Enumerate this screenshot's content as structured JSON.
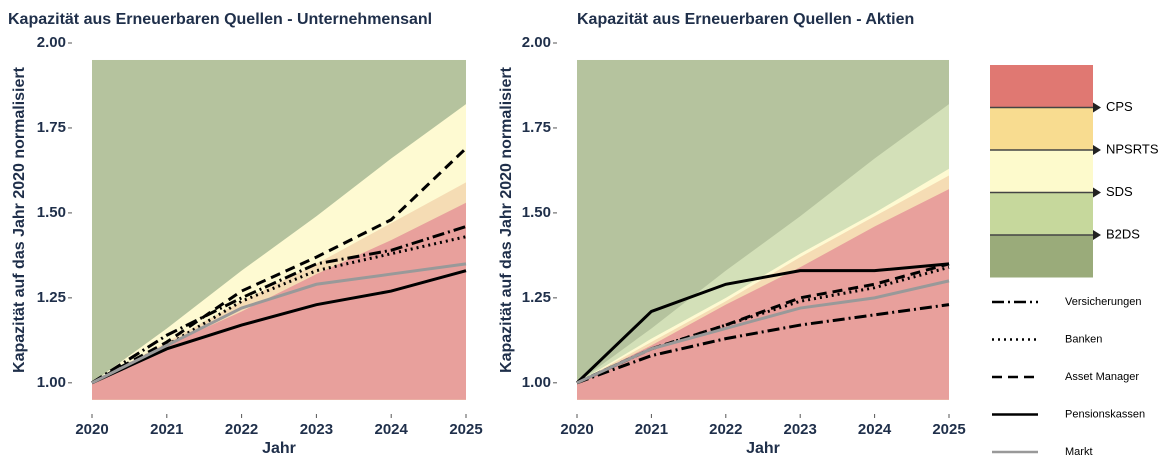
{
  "chart_data": [
    {
      "type": "line",
      "title": "Kapazität aus Erneuerbaren Quellen - Unternehmensanl",
      "x_label": "Jahr",
      "y_label": "Kapazität auf das Jahr 2020 normalisiert",
      "x": [
        2020,
        2021,
        2022,
        2023,
        2024,
        2025
      ],
      "xlim": [
        2020,
        2025
      ],
      "xticks": [
        2020,
        2021,
        2022,
        2023,
        2024,
        2025
      ],
      "ylim": [
        0.92,
        2.0
      ],
      "yticks": [
        {
          "value": 1,
          "label": "1.00"
        },
        {
          "value": 1.25,
          "label": "1.25"
        },
        {
          "value": 1.5,
          "label": "1.50"
        },
        {
          "value": 1.75,
          "label": "1.75"
        },
        {
          "value": 2,
          "label": "2.00"
        }
      ],
      "band_floor": 0.95,
      "band_ceiling": 1.95,
      "background_color": "#b5c39e",
      "bands": [
        {
          "name": "CPS",
          "color": "#e8a09c",
          "upper": [
            1.0,
            1.11,
            1.21,
            1.32,
            1.42,
            1.53
          ]
        },
        {
          "name": "NPSRTS",
          "color": "#f5dcb4",
          "upper": [
            1.0,
            1.12,
            1.24,
            1.35,
            1.47,
            1.59
          ]
        },
        {
          "name": "SDS",
          "color": "#fefad2",
          "upper": [
            1.0,
            1.16,
            1.33,
            1.49,
            1.66,
            1.82
          ]
        }
      ],
      "series": [
        {
          "name": "Versicherungen",
          "color": "#000000",
          "dash": "dashdot",
          "values": [
            1.0,
            1.14,
            1.25,
            1.35,
            1.39,
            1.46
          ]
        },
        {
          "name": "Banken",
          "color": "#000000",
          "dash": "dotted",
          "values": [
            1.0,
            1.11,
            1.24,
            1.33,
            1.38,
            1.43
          ]
        },
        {
          "name": "Asset Manager",
          "color": "#000000",
          "dash": "dashed",
          "values": [
            1.0,
            1.12,
            1.27,
            1.37,
            1.48,
            1.69
          ]
        },
        {
          "name": "Pensionskassen",
          "color": "#000000",
          "dash": "solid",
          "values": [
            1.0,
            1.1,
            1.17,
            1.23,
            1.27,
            1.33
          ]
        },
        {
          "name": "Markt",
          "color": "#999999",
          "dash": "solid",
          "values": [
            1.0,
            1.11,
            1.22,
            1.29,
            1.32,
            1.35
          ]
        }
      ]
    },
    {
      "type": "line",
      "title": "Kapazität aus Erneuerbaren Quellen - Aktien",
      "x_label": "Jahr",
      "y_label": "Kapazität auf das Jahr 2020 normalisiert",
      "x": [
        2020,
        2021,
        2022,
        2023,
        2024,
        2025
      ],
      "xlim": [
        2020,
        2025
      ],
      "xticks": [
        2020,
        2021,
        2022,
        2023,
        2024,
        2025
      ],
      "ylim": [
        0.92,
        2.0
      ],
      "yticks": [
        {
          "value": 1,
          "label": "1.00"
        },
        {
          "value": 1.25,
          "label": "1.25"
        },
        {
          "value": 1.5,
          "label": "1.50"
        },
        {
          "value": 1.75,
          "label": "1.75"
        },
        {
          "value": 2,
          "label": "2.00"
        }
      ],
      "band_floor": 0.95,
      "band_ceiling": 1.95,
      "background_color": "#b5c39e",
      "bands": [
        {
          "name": "CPS",
          "color": "#e8a09c",
          "upper": [
            1.0,
            1.11,
            1.23,
            1.34,
            1.46,
            1.57
          ]
        },
        {
          "name": "NPSRTS",
          "color": "#f5dcb4",
          "upper": [
            1.0,
            1.12,
            1.24,
            1.37,
            1.49,
            1.61
          ]
        },
        {
          "name": "SDS",
          "color": "#fefad2",
          "upper": [
            1.0,
            1.13,
            1.25,
            1.38,
            1.5,
            1.63
          ]
        },
        {
          "name": "B2DS",
          "color": "#d3e0b8",
          "upper": [
            1.0,
            1.16,
            1.33,
            1.49,
            1.66,
            1.82
          ]
        }
      ],
      "series": [
        {
          "name": "Versicherungen",
          "color": "#000000",
          "dash": "dashdot",
          "values": [
            1.0,
            1.08,
            1.13,
            1.17,
            1.2,
            1.23
          ]
        },
        {
          "name": "Banken",
          "color": "#000000",
          "dash": "dotted",
          "values": [
            1.0,
            1.1,
            1.17,
            1.24,
            1.28,
            1.34
          ]
        },
        {
          "name": "Asset Manager",
          "color": "#000000",
          "dash": "dashed",
          "values": [
            1.0,
            1.1,
            1.17,
            1.25,
            1.29,
            1.35
          ]
        },
        {
          "name": "Pensionskassen",
          "color": "#000000",
          "dash": "solid",
          "values": [
            1.0,
            1.21,
            1.29,
            1.33,
            1.33,
            1.35
          ]
        },
        {
          "name": "Markt",
          "color": "#999999",
          "dash": "solid",
          "values": [
            1.0,
            1.1,
            1.16,
            1.22,
            1.25,
            1.3
          ]
        }
      ]
    }
  ]
}
